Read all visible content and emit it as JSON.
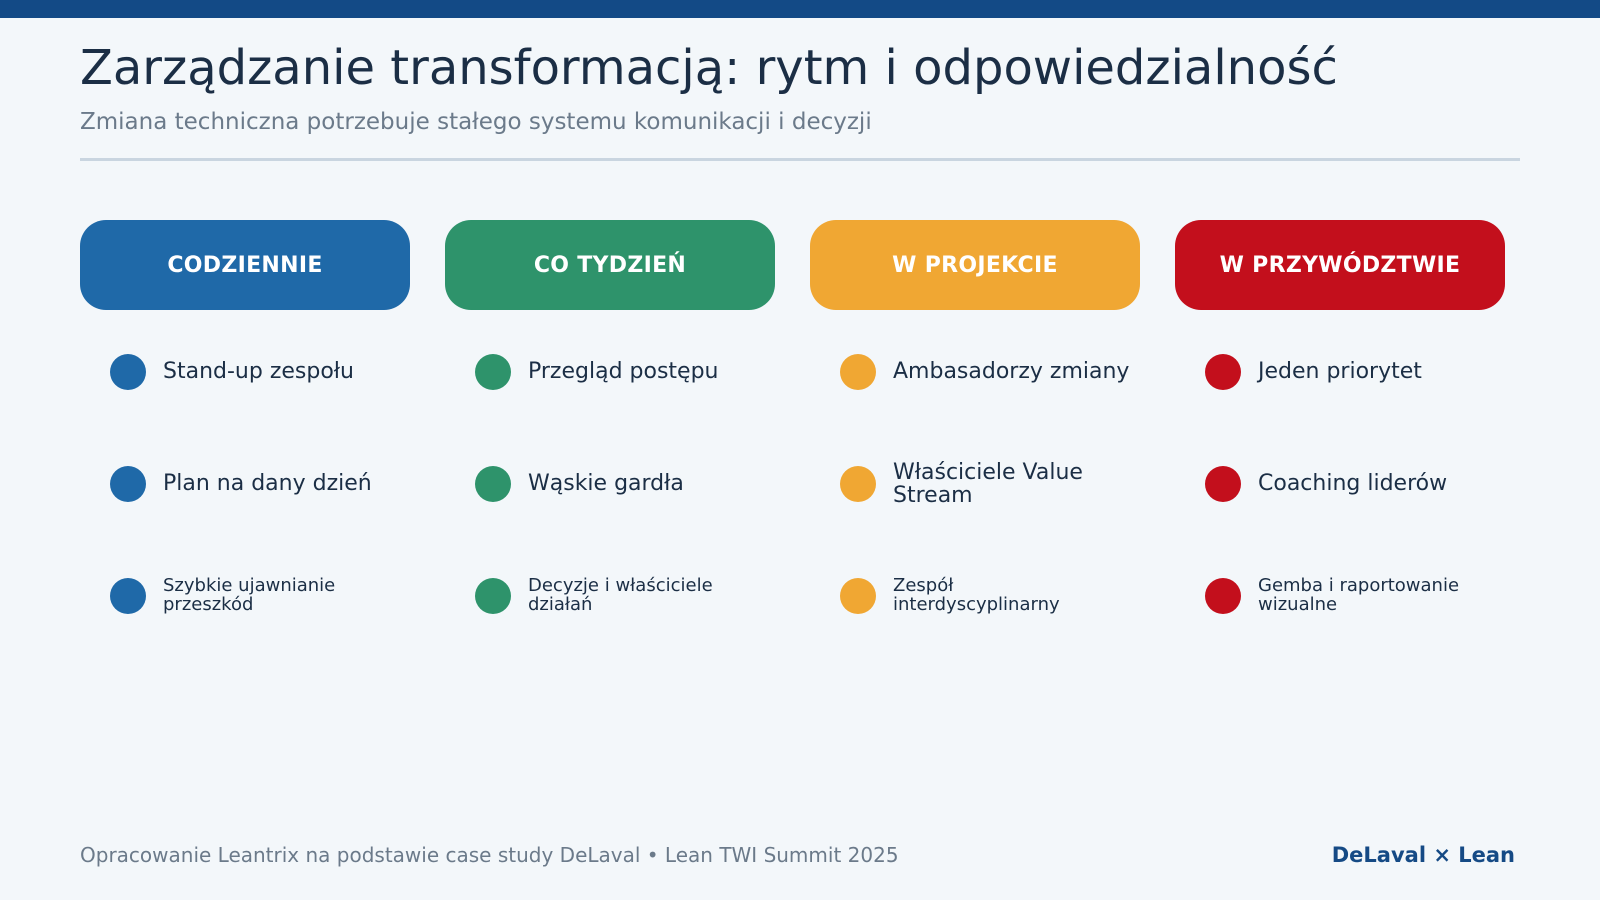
{
  "header": {
    "title": "Zarządzanie transformacją: rytm i odpowiedzialność",
    "subtitle": "Zmiana techniczna potrzebuje stałego systemu komunikacji i decyzji"
  },
  "columns": [
    {
      "title": "CODZIENNIE",
      "color": "#1f69a8",
      "items": [
        "Stand-up zespołu",
        "Plan na dany dzień",
        "Szybkie ujawnianie przeszkód"
      ]
    },
    {
      "title": "CO TYDZIEŃ",
      "color": "#2e936b",
      "items": [
        "Przegląd postępu",
        "Wąskie gardła",
        "Decyzje i właściciele działań"
      ]
    },
    {
      "title": "W PROJEKCIE",
      "color": "#f0a733",
      "items": [
        "Ambasadorzy zmiany",
        "Właściciele Value Stream",
        "Zespół interdyscyplinarny"
      ]
    },
    {
      "title": "W PRZYWÓDZTWIE",
      "color": "#c30f1c",
      "items": [
        "Jeden priorytet",
        "Coaching liderów",
        "Gemba i raportowanie wizualne"
      ]
    }
  ],
  "footer": {
    "source": "Opracowanie Leantrix na podstawie case study DeLaval • Lean TWI Summit 2025",
    "brand": "DeLaval × Lean"
  }
}
